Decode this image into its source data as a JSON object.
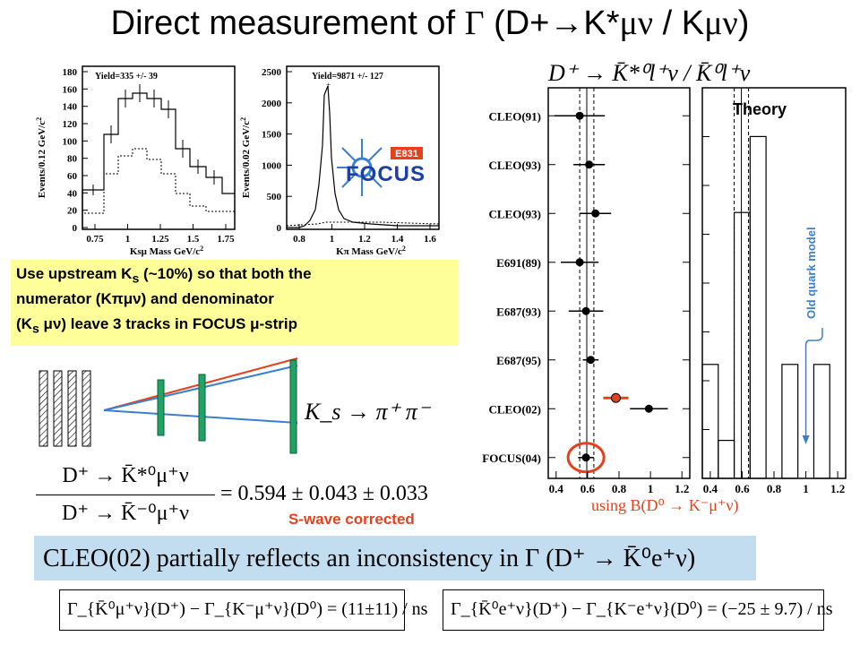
{
  "title": {
    "pre": "Direct measurement of ",
    "gamma": "Γ",
    "mid": " (D+",
    "arrow": "→",
    "kstar": "K*",
    "munu1": "μν",
    "slash": " / K",
    "munu2": "μν",
    "close": ")"
  },
  "histogram_left": {
    "yield": "Yield=335 +/- 39",
    "ylabel": "Events/0.12 GeV/c",
    "ylabel_sup": "2",
    "xlabel": "Ksμ Mass  GeV/c",
    "xlabel_sup": "2",
    "yticks": [
      "180",
      "160",
      "140",
      "120",
      "100",
      "80",
      "60",
      "40",
      "20",
      "0"
    ],
    "xticks": [
      "0.75",
      "1",
      "1.25",
      "1.5",
      "1.75"
    ]
  },
  "histogram_right": {
    "yield": "Yield=9871 +/- 127",
    "ylabel": "Events/0.02 GeV/c",
    "ylabel_sup": "2",
    "xlabel": "Kπ Mass  GeV/c",
    "xlabel_sup": "2",
    "yticks": [
      "2500",
      "2000",
      "1500",
      "1000",
      "500",
      "0"
    ],
    "xticks": [
      "0.8",
      "1",
      "1.2",
      "1.4",
      "1.6"
    ]
  },
  "focus_logo": {
    "text": "FOCUS",
    "tag": "E831"
  },
  "note": {
    "line1_a": "Use upstream K",
    "line1_sub": "s",
    "line1_b": "  (~10%) so that both the",
    "line2": "numerator (Kπμν) and  denominator",
    "line3_a": "(K",
    "line3_sub": "s",
    "line3_b": " μν) leave 3 tracks in FOCUS μ-strip"
  },
  "detector": {
    "decay": "K_s → π⁺ π⁻"
  },
  "ratio_formula": {
    "num": "D⁺ → K̄*⁰μ⁺ν",
    "den": "D⁺ → K̄⁻⁰μ⁺ν",
    "value": "= 0.594 ± 0.043 ± 0.033"
  },
  "swave": "S-wave corrected",
  "cleo_banner": "CLEO(02) partially reflects an inconsistency in Γ (D⁺ → K̄⁰e⁺ν)",
  "formula_left": "Γ_{K̄⁰μ⁺ν}(D⁺) − Γ_{K⁻μ⁺ν}(D⁰) = (11±11) / ns",
  "formula_right": "Γ_{K̄⁰e⁺ν}(D⁺) − Γ_{K⁻e⁺ν}(D⁰) = (−25 ± 9.7) / ns",
  "chart_data": [
    {
      "type": "scatter",
      "title": "D⁺ → K̄*⁰l⁺ν / K̄⁰l⁺ν",
      "subtitle": "using B(D⁰ → K⁻μ⁺ν)",
      "categories": [
        "CLEO(91)",
        "CLEO(93)",
        "CLEO(93)",
        "E691(89)",
        "E687(93)",
        "E687(95)",
        "CLEO(02)",
        "FOCUS(04)"
      ],
      "values": [
        0.55,
        0.61,
        0.65,
        0.55,
        0.59,
        0.62,
        0.99,
        0.59
      ],
      "errors": [
        0.16,
        0.1,
        0.1,
        0.12,
        0.11,
        0.05,
        0.12,
        0.05
      ],
      "swave_corrected_point": {
        "category": "CLEO(02)",
        "value": 0.78,
        "error": 0.08
      },
      "band": [
        0.55,
        0.64
      ],
      "xticks": [
        "0.4",
        "0.6",
        "0.8",
        "1",
        "1.2"
      ],
      "xlim": [
        0.35,
        1.25
      ]
    },
    {
      "type": "bar",
      "title": "Theory",
      "annotation": "Old quark model",
      "xticks": [
        "0.4",
        "0.6",
        "0.8",
        "1",
        "1.2"
      ],
      "xlim": [
        0.35,
        1.25
      ],
      "bins": [
        {
          "x0": 0.35,
          "x1": 0.45,
          "value": 3
        },
        {
          "x0": 0.45,
          "x1": 0.55,
          "value": 1
        },
        {
          "x0": 0.55,
          "x1": 0.65,
          "value": 7
        },
        {
          "x0": 0.65,
          "x1": 0.75,
          "value": 9
        },
        {
          "x0": 0.75,
          "x1": 0.85,
          "value": 0
        },
        {
          "x0": 0.85,
          "x1": 0.95,
          "value": 3
        },
        {
          "x0": 0.95,
          "x1": 1.05,
          "value": 0
        },
        {
          "x0": 1.05,
          "x1": 1.15,
          "value": 3
        },
        {
          "x0": 1.15,
          "x1": 1.25,
          "value": 0
        }
      ],
      "arrow_at": 1.0
    }
  ]
}
